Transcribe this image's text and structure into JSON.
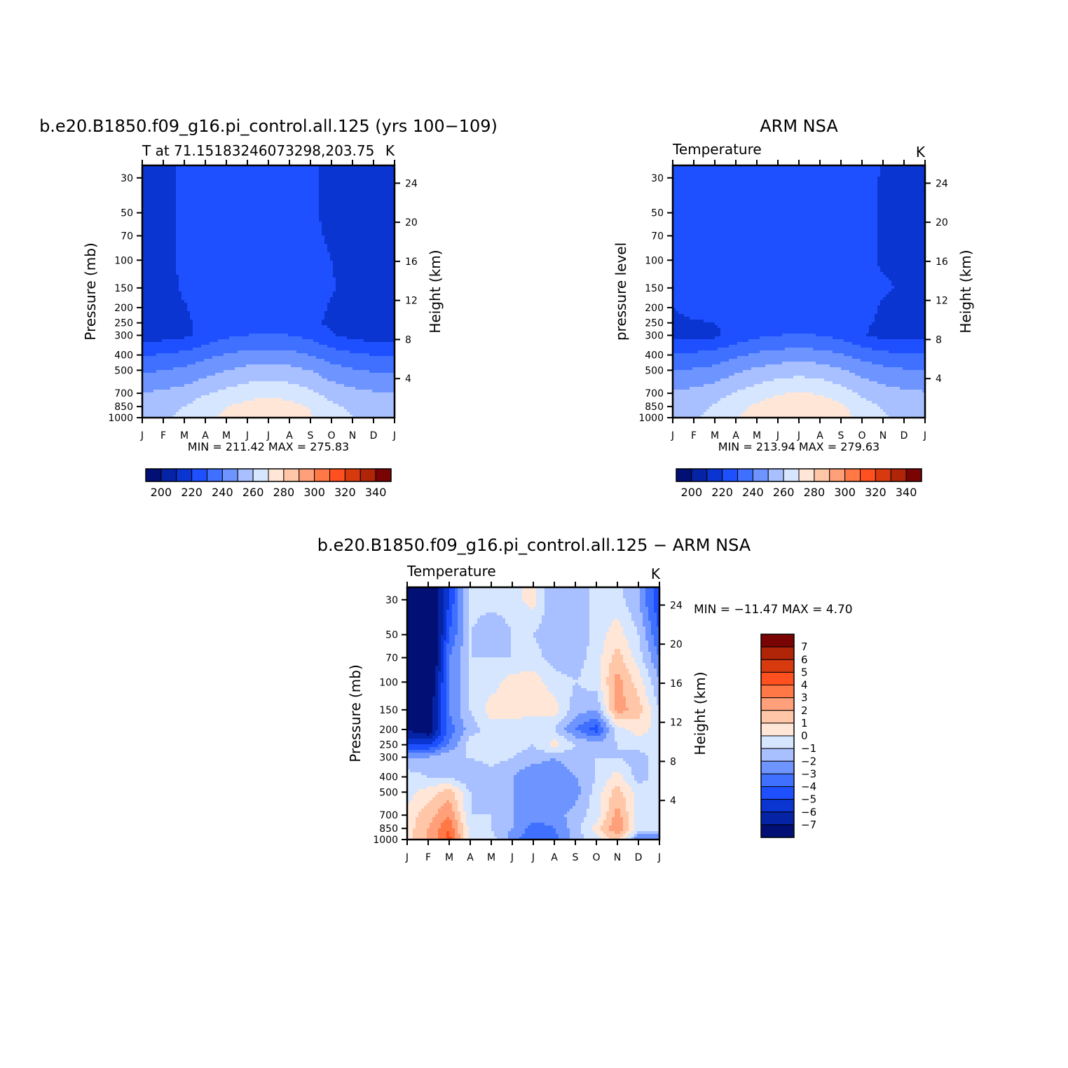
{
  "colors": {
    "palette": [
      "#020f75",
      "#0523a5",
      "#0a35d1",
      "#1e50ff",
      "#3f70ff",
      "#6e95ff",
      "#a8c0ff",
      "#d6e6ff",
      "#ffe6d6",
      "#ffc6a8",
      "#ffa07a",
      "#ff7845",
      "#ff5020",
      "#d83a10",
      "#b02408",
      "#7a0404"
    ]
  },
  "chart_data": [
    {
      "type": "heatmap",
      "title": "b.e20.B1850.f09_g16.pi_control.all.125 (yrs 100−109)",
      "subtitle_left": "T at 71.15183246073298,203.75",
      "subtitle_right": "K",
      "ylabel": "Pressure (mb)",
      "ylabel_right": "Height (km)",
      "x_ticks": [
        "J",
        "F",
        "M",
        "A",
        "M",
        "J",
        "J",
        "A",
        "S",
        "O",
        "N",
        "D",
        "J"
      ],
      "y_ticks": [
        30,
        50,
        70,
        100,
        150,
        200,
        250,
        300,
        400,
        500,
        700,
        850,
        1000
      ],
      "y_right_ticks": [
        24,
        20,
        16,
        12,
        8,
        4
      ],
      "min_max": "MIN = 211.42 MAX = 275.83",
      "colorbar_labels": [
        "200",
        "220",
        "240",
        "260",
        "280",
        "300",
        "320",
        "340"
      ],
      "values": [
        [
          214,
          215,
          223,
          225,
          224,
          224,
          225,
          225,
          222,
          216,
          215,
          214,
          214
        ],
        [
          214,
          215,
          223,
          225,
          225,
          225,
          226,
          225,
          222,
          217,
          215,
          214,
          214
        ],
        [
          214,
          215,
          223,
          225,
          225,
          226,
          226,
          226,
          223,
          218,
          215,
          214,
          214
        ],
        [
          214,
          215,
          223,
          226,
          226,
          226,
          226,
          226,
          224,
          220,
          216,
          214,
          214
        ],
        [
          214,
          215,
          222,
          226,
          226,
          226,
          226,
          226,
          225,
          221,
          216,
          214,
          214
        ],
        [
          214,
          215,
          219,
          225,
          226,
          226,
          226,
          226,
          224,
          219,
          215,
          214,
          214
        ],
        [
          214,
          215,
          218,
          223,
          226,
          226,
          226,
          226,
          222,
          218,
          215,
          214,
          214
        ],
        [
          215,
          216,
          218,
          224,
          228,
          230,
          231,
          230,
          227,
          221,
          217,
          215,
          215
        ],
        [
          229,
          231,
          233,
          237,
          241,
          243,
          244,
          243,
          240,
          235,
          232,
          230,
          229
        ],
        [
          238,
          240,
          242,
          246,
          250,
          253,
          254,
          253,
          250,
          244,
          241,
          239,
          238
        ],
        [
          250,
          252,
          254,
          259,
          263,
          266,
          268,
          266,
          262,
          256,
          253,
          251,
          250
        ],
        [
          255,
          257,
          260,
          266,
          270,
          273,
          275,
          273,
          269,
          262,
          258,
          256,
          255
        ],
        [
          257,
          259,
          262,
          268,
          272,
          275,
          276,
          275,
          271,
          264,
          260,
          258,
          257
        ]
      ]
    },
    {
      "type": "heatmap",
      "title": "ARM NSA",
      "subtitle_left": "Temperature",
      "subtitle_right": "K",
      "ylabel": "pressure level",
      "ylabel_right": "Height (km)",
      "x_ticks": [
        "J",
        "F",
        "M",
        "A",
        "M",
        "J",
        "J",
        "A",
        "S",
        "O",
        "N",
        "D",
        "J"
      ],
      "y_ticks": [
        30,
        50,
        70,
        100,
        150,
        200,
        250,
        300,
        400,
        500,
        700,
        850,
        1000
      ],
      "y_right_ticks": [
        24,
        20,
        16,
        12,
        8,
        4
      ],
      "min_max": "MIN = 213.94 MAX = 279.63",
      "colorbar_labels": [
        "200",
        "220",
        "240",
        "260",
        "280",
        "300",
        "320",
        "340"
      ],
      "values": [
        [
          225,
          225,
          225,
          225,
          225,
          225,
          226,
          225,
          225,
          224,
          219,
          219,
          219
        ],
        [
          225,
          225,
          225,
          225,
          225,
          225,
          225,
          225,
          225,
          223,
          219,
          219,
          219
        ],
        [
          225,
          225,
          225,
          225,
          225,
          225,
          225,
          225,
          225,
          223,
          219,
          219,
          219
        ],
        [
          225,
          225,
          225,
          225,
          225,
          225,
          225,
          225,
          225,
          222,
          219,
          219,
          219
        ],
        [
          223,
          225,
          225,
          225,
          225,
          225,
          225,
          225,
          225,
          223,
          221,
          219,
          219
        ],
        [
          220,
          223,
          225,
          225,
          225,
          225,
          225,
          225,
          225,
          223,
          219,
          219,
          219
        ],
        [
          218,
          219,
          220,
          222,
          225,
          225,
          225,
          225,
          225,
          221,
          219,
          218,
          218
        ],
        [
          218,
          218,
          218,
          224,
          228,
          230,
          231,
          230,
          227,
          221,
          217,
          218,
          218
        ],
        [
          231,
          232,
          234,
          238,
          242,
          244,
          245,
          244,
          241,
          236,
          233,
          231,
          231
        ],
        [
          240,
          241,
          243,
          248,
          252,
          255,
          256,
          255,
          251,
          246,
          243,
          241,
          240
        ],
        [
          251,
          253,
          256,
          261,
          265,
          269,
          271,
          269,
          265,
          258,
          254,
          252,
          251
        ],
        [
          255,
          257,
          261,
          267,
          272,
          276,
          278,
          276,
          272,
          264,
          259,
          256,
          255
        ],
        [
          257,
          259,
          263,
          269,
          274,
          278,
          280,
          278,
          274,
          266,
          261,
          258,
          257
        ]
      ]
    },
    {
      "type": "heatmap",
      "title": "b.e20.B1850.f09_g16.pi_control.all.125 − ARM NSA",
      "subtitle_left": "Temperature",
      "subtitle_right": "K",
      "ylabel": "Pressure (mb)",
      "ylabel_right": "Height (km)",
      "x_ticks": [
        "J",
        "F",
        "M",
        "A",
        "M",
        "J",
        "J",
        "A",
        "S",
        "O",
        "N",
        "D",
        "J"
      ],
      "y_ticks": [
        30,
        50,
        70,
        100,
        150,
        200,
        250,
        300,
        400,
        500,
        700,
        850,
        1000
      ],
      "y_right_ticks": [
        24,
        20,
        16,
        12,
        8,
        4
      ],
      "min_max": "MIN = −11.47 MAX =   4.70",
      "colorbar_labels": [
        "7",
        "6",
        "5",
        "4",
        "3",
        "2",
        "1",
        "0",
        "−1",
        "−2",
        "−3",
        "−4",
        "−5",
        "−6",
        "−7"
      ],
      "values": [
        [
          -9,
          -9,
          -5,
          -0.5,
          -0.5,
          -0.5,
          0.5,
          -2,
          -2,
          -0.5,
          -0.5,
          -2,
          -5
        ],
        [
          -10,
          -10,
          -4,
          -1,
          -2,
          -1,
          -1,
          -2,
          -2,
          -0.5,
          0.5,
          -1,
          -4
        ],
        [
          -11,
          -10,
          -3,
          -1,
          -1,
          -1,
          -0.5,
          -1.5,
          -1.5,
          -0.5,
          1.5,
          -0.5,
          -3
        ],
        [
          -10,
          -9,
          -3,
          -1,
          -0.5,
          0.5,
          0.5,
          -0.5,
          -1,
          -0.5,
          2.5,
          0.5,
          -2
        ],
        [
          -8,
          -8,
          -3,
          -1,
          0.5,
          0.5,
          0.5,
          0.5,
          -1.5,
          -2,
          2.5,
          1.5,
          -1
        ],
        [
          -7,
          -8,
          -3.5,
          -1.5,
          -0.5,
          -0.5,
          -1,
          -1,
          -3,
          -4.5,
          -0.5,
          0.5,
          -0.5
        ],
        [
          -5,
          -5,
          -3,
          -0.5,
          -0.5,
          -0.5,
          -1,
          0.5,
          -1,
          -1.5,
          -1,
          -0.5,
          -0.5
        ],
        [
          -2,
          -2,
          -1,
          -1,
          -0.5,
          -1,
          -1.5,
          -2,
          -1.5,
          -1,
          -1,
          -1.5,
          -0.5
        ],
        [
          -0.5,
          -1,
          -1,
          -2,
          -1.5,
          -2,
          -3,
          -2.5,
          -2,
          -1,
          0.5,
          -1.5,
          -0.5
        ],
        [
          -0.5,
          0.5,
          1.5,
          -1,
          -1.5,
          -2,
          -3,
          -3,
          -2.5,
          -0.5,
          1.5,
          -0.5,
          -0.5
        ],
        [
          0.5,
          1.5,
          3,
          -1,
          -1,
          -2,
          -2.5,
          -2.5,
          -1.5,
          -0.5,
          2.5,
          -0.5,
          -0.5
        ],
        [
          0.5,
          2,
          4,
          -0.5,
          -1,
          -2,
          -3.5,
          -3,
          -1.5,
          0.5,
          3,
          -0.5,
          -0.5
        ],
        [
          0.5,
          2,
          4.5,
          -0.5,
          -0.5,
          -2.5,
          -4,
          -3.5,
          -1.5,
          -0.5,
          1.5,
          -3,
          -3
        ]
      ]
    }
  ]
}
